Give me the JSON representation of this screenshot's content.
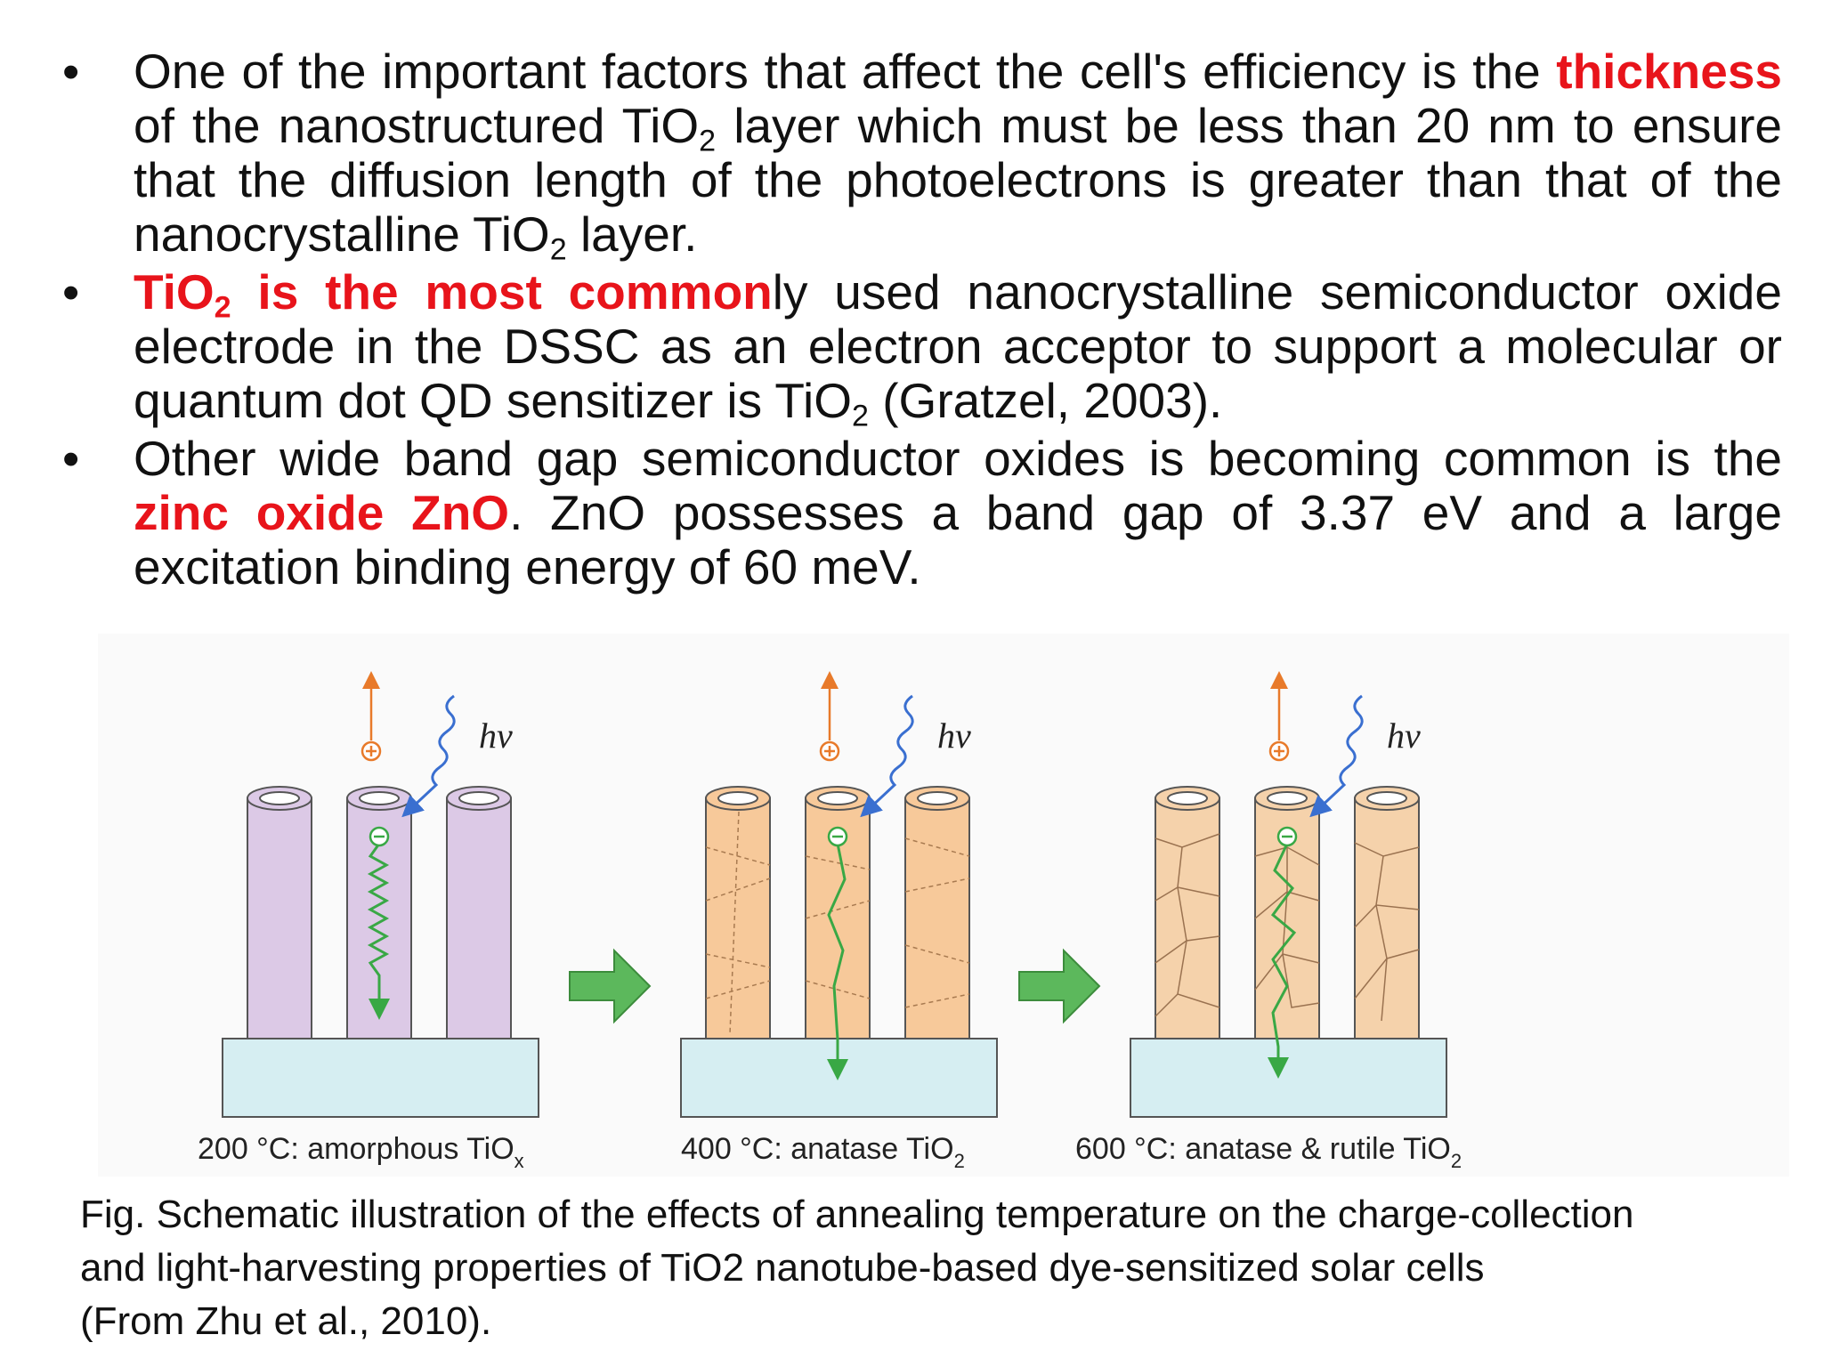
{
  "bullets": [
    {
      "before": "One of the important factors that affect the cell's efficiency is the ",
      "highlight": "thickness",
      "after1": " of the nanostructured TiO",
      "sub1": "2",
      "after2": " layer which must be less than 20 nm to ensure that the diffusion length of the photoelectrons is greater than that of the nanocrystalline TiO",
      "sub2": "2",
      "after3": " layer."
    },
    {
      "highlight_a": "TiO",
      "highlight_sub": "2",
      "highlight_b": " is the most common",
      "after1": "ly used nanocrystalline semiconductor oxide electrode in the DSSC as an electron acceptor to support a molecular or quantum dot QD sensitizer is TiO",
      "sub1": "2",
      "after2": " (Gratzel, 2003)."
    },
    {
      "before": "Other wide band gap semiconductor oxides is becoming common is the ",
      "highlight": "zinc oxide ZnO",
      "after1": ". ZnO possesses a band gap of 3.37 eV and a large excitation binding energy of 60 meV."
    }
  ],
  "figure": {
    "hv": "hν",
    "panels": [
      {
        "label": "200 °C: amorphous TiO",
        "sub": "x"
      },
      {
        "label": "400 °C: anatase TiO",
        "sub": "2"
      },
      {
        "label": "600 °C: anatase & rutile TiO",
        "sub": "2"
      }
    ],
    "colors": {
      "amorphous": "#dcc9e6",
      "anatase": "#f7c99a",
      "rutile": "#f5d2ab",
      "substrate": "#d6eef2",
      "electron_path": "#39a845",
      "arrow": "#5cb85c",
      "hole_arrow": "#e87a2a",
      "photon": "#3a6fd0"
    }
  },
  "caption": {
    "line1": "Fig. Schematic illustration of the effects of annealing temperature on the charge-collection",
    "line2": "and light-harvesting properties of TiO2 nanotube-based dye-sensitized solar cells",
    "line3": "(From Zhu et al., 2010)."
  }
}
